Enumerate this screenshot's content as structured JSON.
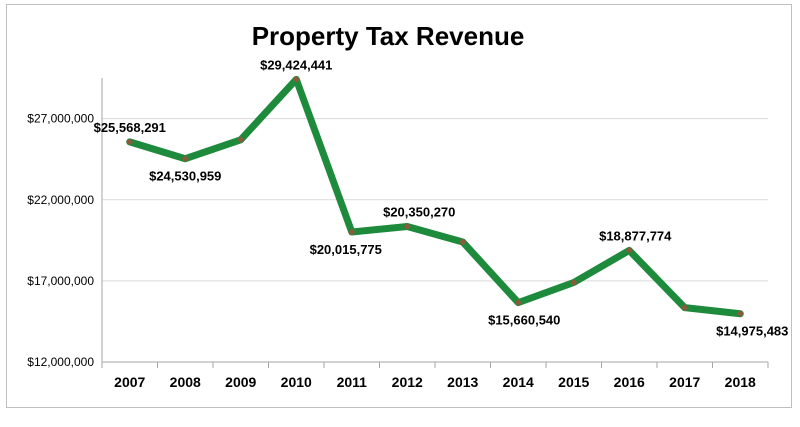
{
  "chart_data": {
    "type": "line",
    "title": "Property Tax Revenue",
    "xlabel": "",
    "ylabel": "",
    "categories": [
      "2007",
      "2008",
      "2009",
      "2010",
      "2011",
      "2012",
      "2013",
      "2014",
      "2015",
      "2016",
      "2017",
      "2018"
    ],
    "values": [
      25568291,
      24530959,
      25700000,
      29424441,
      20015775,
      20350270,
      19400000,
      15660540,
      16900000,
      18877774,
      15350000,
      14975483
    ],
    "data_labels": [
      {
        "index": 0,
        "text": "$25,568,291"
      },
      {
        "index": 1,
        "text": "$24,530,959"
      },
      {
        "index": 3,
        "text": "$29,424,441"
      },
      {
        "index": 4,
        "text": "$20,015,775"
      },
      {
        "index": 5,
        "text": "$20,350,270"
      },
      {
        "index": 7,
        "text": "$15,660,540"
      },
      {
        "index": 9,
        "text": "$18,877,774"
      },
      {
        "index": 11,
        "text": "$14,975,483"
      }
    ],
    "yticks": [
      12000000,
      17000000,
      22000000,
      27000000
    ],
    "ytick_labels": [
      "$12,000,000",
      "$17,000,000",
      "$22,000,000",
      "$27,000,000"
    ],
    "ylim": [
      12000000,
      30000000
    ],
    "grid": true,
    "line_color": "#1e8a3c",
    "marker_color": "#8a5a3c"
  }
}
